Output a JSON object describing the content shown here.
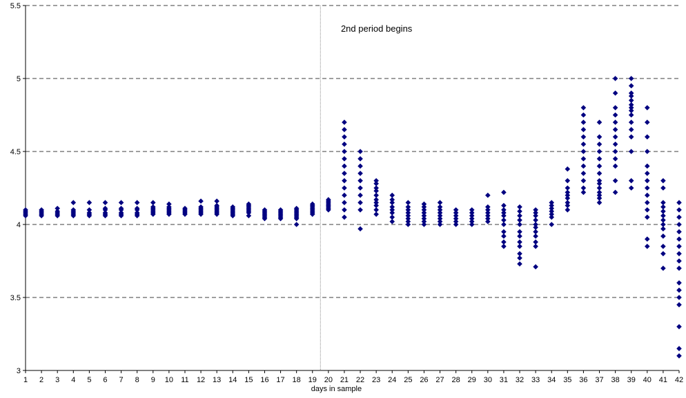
{
  "chart_data": {
    "type": "scatter",
    "title": "",
    "xlabel": "days in sample",
    "ylabel": "",
    "xlim": [
      1,
      42
    ],
    "ylim": [
      3,
      5.5
    ],
    "y_ticks": [
      "3",
      "3.5",
      "4",
      "4.5",
      "5",
      "5.5"
    ],
    "x_ticks": [
      "1",
      "2",
      "3",
      "4",
      "5",
      "6",
      "7",
      "8",
      "9",
      "10",
      "11",
      "12",
      "13",
      "14",
      "15",
      "16",
      "17",
      "18",
      "19",
      "20",
      "21",
      "22",
      "23",
      "24",
      "25",
      "26",
      "27",
      "28",
      "29",
      "30",
      "31",
      "32",
      "33",
      "34",
      "35",
      "36",
      "37",
      "38",
      "39",
      "40",
      "41",
      "42"
    ],
    "grid": "horizontal dashed",
    "legend": "none",
    "marker_color": "#000080",
    "annotation": {
      "text": "2nd period begins",
      "x": 19.5
    },
    "days": [
      {
        "x": 1,
        "y": [
          4.06,
          4.07,
          4.08,
          4.09,
          4.1
        ]
      },
      {
        "x": 2,
        "y": [
          4.06,
          4.07,
          4.08,
          4.09,
          4.1
        ]
      },
      {
        "x": 3,
        "y": [
          4.06,
          4.07,
          4.08,
          4.09,
          4.11
        ]
      },
      {
        "x": 4,
        "y": [
          4.06,
          4.07,
          4.08,
          4.09,
          4.1,
          4.15
        ]
      },
      {
        "x": 5,
        "y": [
          4.06,
          4.07,
          4.08,
          4.1,
          4.15
        ]
      },
      {
        "x": 6,
        "y": [
          4.06,
          4.07,
          4.08,
          4.1,
          4.11,
          4.15
        ]
      },
      {
        "x": 7,
        "y": [
          4.06,
          4.07,
          4.08,
          4.1,
          4.11,
          4.15
        ]
      },
      {
        "x": 8,
        "y": [
          4.06,
          4.07,
          4.08,
          4.1,
          4.11,
          4.15
        ]
      },
      {
        "x": 9,
        "y": [
          4.07,
          4.08,
          4.09,
          4.1,
          4.11,
          4.12,
          4.15
        ]
      },
      {
        "x": 10,
        "y": [
          4.07,
          4.08,
          4.09,
          4.1,
          4.11,
          4.12,
          4.14
        ]
      },
      {
        "x": 11,
        "y": [
          4.07,
          4.08,
          4.09,
          4.1,
          4.11
        ]
      },
      {
        "x": 12,
        "y": [
          4.07,
          4.08,
          4.09,
          4.1,
          4.11,
          4.12,
          4.16
        ]
      },
      {
        "x": 13,
        "y": [
          4.07,
          4.08,
          4.09,
          4.1,
          4.11,
          4.12,
          4.13,
          4.16
        ]
      },
      {
        "x": 14,
        "y": [
          4.06,
          4.07,
          4.08,
          4.09,
          4.1,
          4.11,
          4.12
        ]
      },
      {
        "x": 15,
        "y": [
          4.06,
          4.08,
          4.09,
          4.1,
          4.11,
          4.12,
          4.13,
          4.14
        ]
      },
      {
        "x": 16,
        "y": [
          4.04,
          4.05,
          4.06,
          4.07,
          4.08,
          4.09,
          4.1
        ]
      },
      {
        "x": 17,
        "y": [
          4.04,
          4.05,
          4.06,
          4.07,
          4.08,
          4.09,
          4.1
        ]
      },
      {
        "x": 18,
        "y": [
          4.0,
          4.04,
          4.05,
          4.06,
          4.07,
          4.08,
          4.09,
          4.1,
          4.11
        ]
      },
      {
        "x": 19,
        "y": [
          4.07,
          4.08,
          4.09,
          4.1,
          4.11,
          4.12,
          4.13,
          4.14
        ]
      },
      {
        "x": 20,
        "y": [
          4.1,
          4.11,
          4.12,
          4.13,
          4.14,
          4.15,
          4.16,
          4.17
        ]
      },
      {
        "x": 21,
        "y": [
          4.05,
          4.1,
          4.15,
          4.2,
          4.25,
          4.3,
          4.35,
          4.4,
          4.45,
          4.5,
          4.55,
          4.6,
          4.65,
          4.7
        ]
      },
      {
        "x": 22,
        "y": [
          3.97,
          4.1,
          4.15,
          4.2,
          4.25,
          4.3,
          4.35,
          4.4,
          4.45,
          4.5
        ]
      },
      {
        "x": 23,
        "y": [
          4.07,
          4.1,
          4.13,
          4.15,
          4.17,
          4.2,
          4.23,
          4.25,
          4.28,
          4.3
        ]
      },
      {
        "x": 24,
        "y": [
          4.02,
          4.05,
          4.08,
          4.1,
          4.12,
          4.15,
          4.17,
          4.2
        ]
      },
      {
        "x": 25,
        "y": [
          4.0,
          4.02,
          4.04,
          4.06,
          4.08,
          4.1,
          4.12,
          4.15
        ]
      },
      {
        "x": 26,
        "y": [
          4.0,
          4.02,
          4.04,
          4.06,
          4.08,
          4.1,
          4.12,
          4.14
        ]
      },
      {
        "x": 27,
        "y": [
          4.0,
          4.02,
          4.04,
          4.06,
          4.08,
          4.1,
          4.12,
          4.15
        ]
      },
      {
        "x": 28,
        "y": [
          4.0,
          4.02,
          4.04,
          4.06,
          4.08,
          4.1
        ]
      },
      {
        "x": 29,
        "y": [
          4.0,
          4.02,
          4.04,
          4.06,
          4.08,
          4.1
        ]
      },
      {
        "x": 30,
        "y": [
          4.02,
          4.04,
          4.06,
          4.08,
          4.1,
          4.12,
          4.2
        ]
      },
      {
        "x": 31,
        "y": [
          3.85,
          3.88,
          3.92,
          3.95,
          4.0,
          4.03,
          4.06,
          4.08,
          4.1,
          4.13,
          4.22
        ]
      },
      {
        "x": 32,
        "y": [
          3.73,
          3.77,
          3.8,
          3.85,
          3.88,
          3.92,
          3.95,
          4.0,
          4.03,
          4.06,
          4.09,
          4.12
        ]
      },
      {
        "x": 33,
        "y": [
          3.71,
          3.85,
          3.88,
          3.92,
          3.95,
          3.98,
          4.0,
          4.03,
          4.06,
          4.08,
          4.1
        ]
      },
      {
        "x": 34,
        "y": [
          4.0,
          4.05,
          4.07,
          4.09,
          4.11,
          4.13,
          4.15
        ]
      },
      {
        "x": 35,
        "y": [
          4.1,
          4.13,
          4.15,
          4.18,
          4.2,
          4.22,
          4.25,
          4.3,
          4.38
        ]
      },
      {
        "x": 36,
        "y": [
          4.22,
          4.25,
          4.3,
          4.35,
          4.4,
          4.45,
          4.5,
          4.55,
          4.6,
          4.65,
          4.7,
          4.75,
          4.8
        ]
      },
      {
        "x": 37,
        "y": [
          4.15,
          4.18,
          4.2,
          4.22,
          4.25,
          4.28,
          4.3,
          4.35,
          4.4,
          4.45,
          4.5,
          4.55,
          4.6,
          4.7
        ]
      },
      {
        "x": 38,
        "y": [
          4.22,
          4.3,
          4.4,
          4.45,
          4.5,
          4.55,
          4.6,
          4.65,
          4.7,
          4.75,
          4.8,
          4.9,
          5.0
        ]
      },
      {
        "x": 39,
        "y": [
          4.25,
          4.3,
          4.5,
          4.6,
          4.65,
          4.7,
          4.75,
          4.78,
          4.8,
          4.82,
          4.85,
          4.88,
          4.9,
          4.95,
          5.0
        ]
      },
      {
        "x": 40,
        "y": [
          3.85,
          3.9,
          4.05,
          4.1,
          4.15,
          4.2,
          4.25,
          4.3,
          4.35,
          4.4,
          4.5,
          4.6,
          4.7,
          4.8
        ]
      },
      {
        "x": 41,
        "y": [
          3.7,
          3.8,
          3.85,
          3.92,
          3.97,
          4.0,
          4.03,
          4.06,
          4.09,
          4.12,
          4.15,
          4.25,
          4.3
        ]
      },
      {
        "x": 42,
        "y": [
          3.1,
          3.15,
          3.3,
          3.45,
          3.5,
          3.55,
          3.6,
          3.7,
          3.75,
          3.8,
          3.85,
          3.9,
          3.95,
          4.0,
          4.05,
          4.1,
          4.15
        ]
      }
    ]
  }
}
